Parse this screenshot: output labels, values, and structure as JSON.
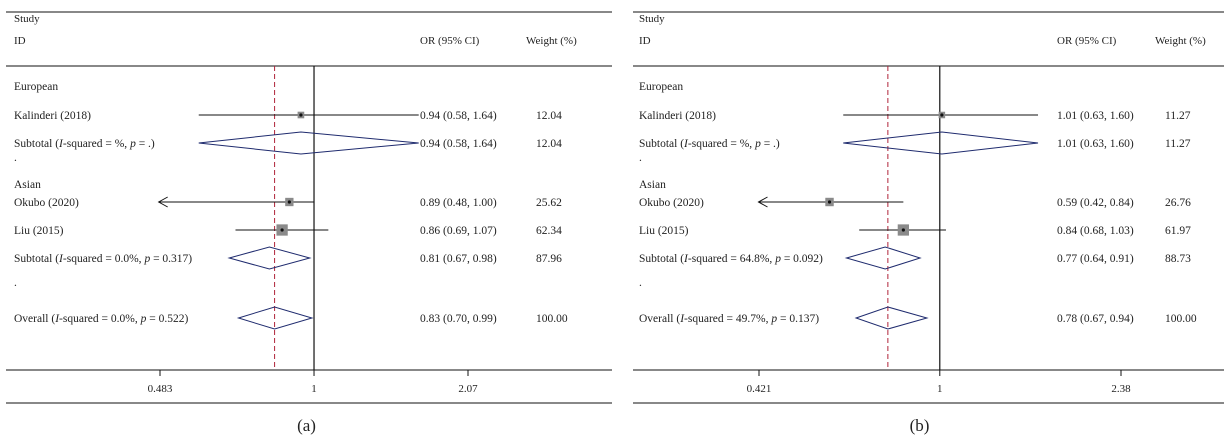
{
  "header": {
    "study": "Study",
    "id": "ID",
    "or_col": "OR (95% CI)",
    "weight_col": "Weight (%)"
  },
  "chart_data": [
    {
      "type": "forest",
      "caption": "(a)",
      "xscale": "log",
      "ref_line": 1,
      "pooled_line": 0.83,
      "xticks": [
        {
          "value": 0.483,
          "label": "0.483"
        },
        {
          "value": 1,
          "label": "1"
        },
        {
          "value": 2.07,
          "label": "2.07"
        }
      ],
      "rows": [
        {
          "kind": "group",
          "label": "European"
        },
        {
          "kind": "study",
          "label": "Kalinderi (2018)",
          "or": 0.94,
          "lo": 0.58,
          "hi": 1.64,
          "weight": 12.04,
          "or_text": "0.94 (0.58, 1.64)",
          "weight_text": "12.04"
        },
        {
          "kind": "subtotal",
          "label_pre": "Subtotal (",
          "label_i": "I",
          "label_mid": "-squared = %, ",
          "label_p": "p",
          "label_post": " = .)",
          "or": 0.94,
          "lo": 0.58,
          "hi": 1.64,
          "or_text": "0.94 (0.58, 1.64)",
          "weight_text": "12.04"
        },
        {
          "kind": "dot",
          "label": "."
        },
        {
          "kind": "group",
          "label": "Asian"
        },
        {
          "kind": "study",
          "label": "Okubo (2020)",
          "or": 0.89,
          "lo": 0.48,
          "hi": 1.0,
          "weight": 25.62,
          "arrow_left": true,
          "or_text": "0.89 (0.48, 1.00)",
          "weight_text": "25.62"
        },
        {
          "kind": "study",
          "label": "Liu (2015)",
          "or": 0.86,
          "lo": 0.69,
          "hi": 1.07,
          "weight": 62.34,
          "or_text": "0.86 (0.69, 1.07)",
          "weight_text": "62.34"
        },
        {
          "kind": "subtotal",
          "label_pre": "Subtotal (",
          "label_i": "I",
          "label_mid": "-squared = 0.0%, ",
          "label_p": "p",
          "label_post": " = 0.317)",
          "or": 0.81,
          "lo": 0.67,
          "hi": 0.98,
          "or_text": "0.81 (0.67, 0.98)",
          "weight_text": "87.96"
        },
        {
          "kind": "dot",
          "label": "."
        },
        {
          "kind": "overall",
          "label_pre": "Overall (",
          "label_i": "I",
          "label_mid": "-squared = 0.0%, ",
          "label_p": "p",
          "label_post": " = 0.522)",
          "or": 0.83,
          "lo": 0.7,
          "hi": 0.99,
          "or_text": "0.83 (0.70, 0.99)",
          "weight_text": "100.00"
        }
      ]
    },
    {
      "type": "forest",
      "caption": "(b)",
      "xscale": "log",
      "ref_line": 1,
      "pooled_line": 0.78,
      "xticks": [
        {
          "value": 0.421,
          "label": "0.421"
        },
        {
          "value": 1,
          "label": "1"
        },
        {
          "value": 2.38,
          "label": "2.38"
        }
      ],
      "rows": [
        {
          "kind": "group",
          "label": "European"
        },
        {
          "kind": "study",
          "label": "Kalinderi (2018)",
          "or": 1.01,
          "lo": 0.63,
          "hi": 1.6,
          "weight": 11.27,
          "or_text": "1.01 (0.63, 1.60)",
          "weight_text": "11.27"
        },
        {
          "kind": "subtotal",
          "label_pre": "Subtotal (",
          "label_i": "I",
          "label_mid": "-squared = %, ",
          "label_p": "p",
          "label_post": " = .)",
          "or": 1.01,
          "lo": 0.63,
          "hi": 1.6,
          "or_text": "1.01 (0.63, 1.60)",
          "weight_text": "11.27"
        },
        {
          "kind": "dot",
          "label": "."
        },
        {
          "kind": "group",
          "label": "Asian"
        },
        {
          "kind": "study",
          "label": "Okubo (2020)",
          "or": 0.59,
          "lo": 0.42,
          "hi": 0.84,
          "weight": 26.76,
          "arrow_left": true,
          "or_text": "0.59 (0.42, 0.84)",
          "weight_text": "26.76"
        },
        {
          "kind": "study",
          "label": "Liu (2015)",
          "or": 0.84,
          "lo": 0.68,
          "hi": 1.03,
          "weight": 61.97,
          "or_text": "0.84 (0.68, 1.03)",
          "weight_text": "61.97"
        },
        {
          "kind": "subtotal",
          "label_pre": "Subtotal (",
          "label_i": "I",
          "label_mid": "-squared = 64.8%, ",
          "label_p": "p",
          "label_post": " = 0.092)",
          "or": 0.77,
          "lo": 0.64,
          "hi": 0.91,
          "or_text": "0.77 (0.64, 0.91)",
          "weight_text": "88.73"
        },
        {
          "kind": "dot",
          "label": "."
        },
        {
          "kind": "overall",
          "label_pre": "Overall (",
          "label_i": "I",
          "label_mid": "-squared = 49.7%, ",
          "label_p": "p",
          "label_post": " = 0.137)",
          "or": 0.78,
          "lo": 0.67,
          "hi": 0.94,
          "or_text": "0.78 (0.67, 0.94)",
          "weight_text": "100.00"
        }
      ]
    }
  ],
  "colors": {
    "diamond": "#1f2b6e",
    "pooled_line": "#b0243a",
    "axis": "#111111",
    "box": "#8a8a8a",
    "text": "#222222"
  }
}
